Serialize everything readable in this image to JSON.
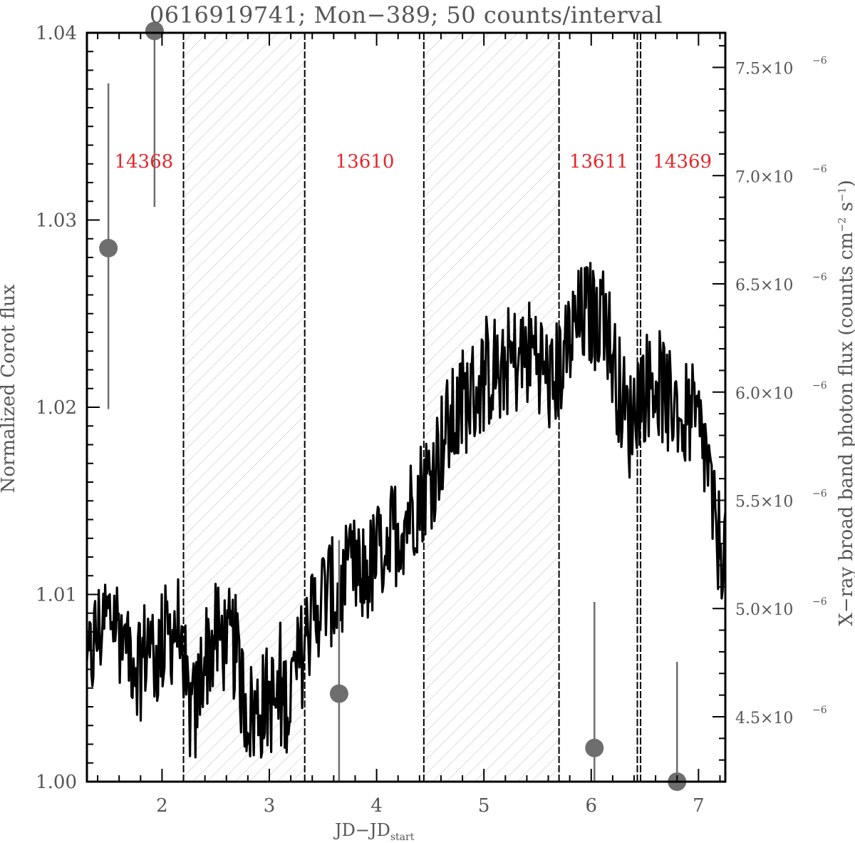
{
  "chart_data": {
    "type": "line",
    "title": "0616919741; Mon−389; 50 counts/interval",
    "xlabel": "JD−JD",
    "xlabel_sub": "start",
    "ylabel": "Normalized Corot flux",
    "ylabel_right": "X−ray broad band photon flux (counts cm",
    "ylabel_right_units": [
      "−2",
      " s",
      "−1",
      ")"
    ],
    "xlim": [
      1.3,
      7.25
    ],
    "ylim": [
      1.0,
      1.04
    ],
    "ylim_right": [
      4.2e-06,
      7.66e-06
    ],
    "xticks": [
      2,
      3,
      4,
      5,
      6,
      7
    ],
    "xtick_labels": [
      "2",
      "3",
      "4",
      "5",
      "6",
      "7"
    ],
    "yticks": [
      1.0,
      1.01,
      1.02,
      1.03,
      1.04
    ],
    "ytick_labels": [
      "1.00",
      "1.01",
      "1.02",
      "1.03",
      "1.04"
    ],
    "yticks_right": [
      4.5e-06,
      5e-06,
      5.5e-06,
      6e-06,
      6.5e-06,
      7e-06,
      7.5e-06
    ],
    "ytick_labels_right": [
      "4.5×10",
      "5.0×10",
      "5.5×10",
      "6.0×10",
      "6.5×10",
      "7.0×10",
      "7.5×10"
    ],
    "ytick_label_right_exponent": "−6",
    "shaded_intervals": [
      [
        2.2,
        3.33
      ],
      [
        4.44,
        5.7
      ]
    ],
    "vertical_lines": [
      2.2,
      3.33,
      4.44,
      5.7,
      6.43,
      6.46
    ],
    "obs_labels": [
      {
        "text": "14368",
        "x": 1.83
      },
      {
        "text": "13610",
        "x": 3.89
      },
      {
        "text": "13611",
        "x": 6.07
      },
      {
        "text": "14369",
        "x": 6.85
      }
    ],
    "obs_label_y": 1.0328,
    "obs_label_color": "#e8262a",
    "line_color": "#000000",
    "xray_color": "#6e6e6e",
    "xray_points": [
      {
        "x": 1.5,
        "y": 1.0285,
        "ylo": 1.0199,
        "yhi": 1.0373
      },
      {
        "x": 1.93,
        "y": 1.0401,
        "ylo": 1.0307,
        "yhi": 1.0482
      },
      {
        "x": 3.65,
        "y": 1.0047,
        "ylo": 0.997,
        "yhi": 1.0129
      },
      {
        "x": 6.03,
        "y": 1.0018,
        "ylo": 0.995,
        "yhi": 1.0096
      },
      {
        "x": 6.8,
        "y": 1.0,
        "ylo": 0.994,
        "yhi": 1.0064
      }
    ],
    "corot_series": {
      "x": [
        1.3,
        1.37,
        1.45,
        1.55,
        1.63,
        1.72,
        1.8,
        1.88,
        1.94,
        2.0,
        2.07,
        2.13,
        2.18,
        2.24,
        2.31,
        2.38,
        2.45,
        2.52,
        2.6,
        2.68,
        2.76,
        2.84,
        2.92,
        3.0,
        3.08,
        3.16,
        3.24,
        3.32,
        3.4,
        3.48,
        3.56,
        3.64,
        3.72,
        3.8,
        3.88,
        3.96,
        4.04,
        4.12,
        4.2,
        4.28,
        4.36,
        4.44,
        4.52,
        4.6,
        4.68,
        4.76,
        4.84,
        4.92,
        5.0,
        5.08,
        5.16,
        5.24,
        5.32,
        5.4,
        5.48,
        5.56,
        5.64,
        5.72,
        5.8,
        5.88,
        5.96,
        6.04,
        6.12,
        6.2,
        6.28,
        6.36,
        6.44,
        6.52,
        6.6,
        6.68,
        6.76,
        6.84,
        6.92,
        7.0,
        7.08,
        7.16,
        7.25
      ],
      "y": [
        1.0055,
        1.0075,
        1.0085,
        1.009,
        1.0078,
        1.007,
        1.0062,
        1.0078,
        1.0065,
        1.0075,
        1.0078,
        1.0085,
        1.0078,
        1.004,
        1.0035,
        1.0065,
        1.0072,
        1.0078,
        1.0075,
        1.0072,
        1.0045,
        1.0035,
        1.004,
        1.0045,
        1.004,
        1.0045,
        1.0055,
        1.0072,
        1.0088,
        1.0098,
        1.0102,
        1.0098,
        1.0108,
        1.0112,
        1.011,
        1.0115,
        1.0125,
        1.0132,
        1.0135,
        1.0142,
        1.015,
        1.0158,
        1.0165,
        1.018,
        1.019,
        1.0195,
        1.0205,
        1.0208,
        1.0215,
        1.022,
        1.0222,
        1.0225,
        1.0225,
        1.0228,
        1.0232,
        1.022,
        1.021,
        1.0225,
        1.0235,
        1.0245,
        1.025,
        1.0248,
        1.0255,
        1.0225,
        1.0205,
        1.019,
        1.0208,
        1.0212,
        1.0215,
        1.0208,
        1.0205,
        1.0198,
        1.0195,
        1.0188,
        1.0172,
        1.013,
        1.0125
      ]
    }
  }
}
